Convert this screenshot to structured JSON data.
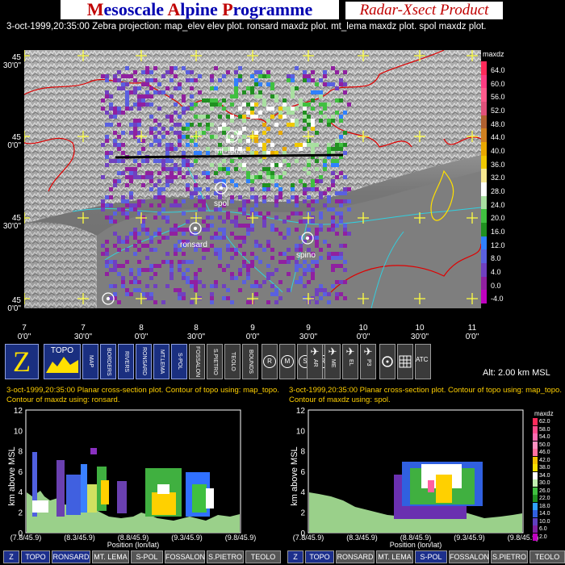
{
  "header": {
    "main_title_parts": [
      {
        "cap": "M",
        "rest": "esoscale "
      },
      {
        "cap": "A",
        "rest": "lpine "
      },
      {
        "cap": "P",
        "rest": "rogramme"
      }
    ],
    "product_title": "Radar-Xsect Product",
    "subtitle": "3-oct-1999,20:35:00  Zebra projection: map_elev elev plot. ronsard maxdz plot. mt_lema maxdz plot. spol maxdz plot."
  },
  "map": {
    "lat_labels": [
      {
        "deg": "45",
        "min": "30'0\""
      },
      {
        "deg": "45",
        "min": "0'0\""
      },
      {
        "deg": "45",
        "min": "30'0\""
      },
      {
        "deg": "45",
        "min": "0'0\""
      }
    ],
    "lon_labels": [
      {
        "deg": "7",
        "min": "0'0\""
      },
      {
        "deg": "7",
        "min": "30'0\""
      },
      {
        "deg": "8",
        "min": "0'0\""
      },
      {
        "deg": "8",
        "min": "30'0\""
      },
      {
        "deg": "9",
        "min": "0'0\""
      },
      {
        "deg": "9",
        "min": "30'0\""
      },
      {
        "deg": "10",
        "min": "0'0\""
      },
      {
        "deg": "10",
        "min": "30'0\""
      },
      {
        "deg": "11",
        "min": "0'0\""
      }
    ],
    "stations": [
      "mt_lema",
      "spol",
      "ronsard",
      "spino",
      "bric"
    ],
    "colorbar_title": "maxdz",
    "colorbar_ticks": [
      "64.0",
      "60.0",
      "56.0",
      "52.0",
      "48.0",
      "44.0",
      "40.0",
      "36.0",
      "32.0",
      "28.0",
      "24.0",
      "20.0",
      "16.0",
      "12.0",
      "8.0",
      "4.0",
      "0.0",
      "-4.0"
    ],
    "colorbar_colors": [
      "#ff2a5a",
      "#ff3c82",
      "#ff5a8c",
      "#e0507a",
      "#b06030",
      "#d08020",
      "#e8a800",
      "#f0c800",
      "#f8e890",
      "#ffffff",
      "#a8e0a0",
      "#40c040",
      "#209020",
      "#3080ff",
      "#5a60e0",
      "#7040c0",
      "#9020a0",
      "#c000c0"
    ]
  },
  "toolbar": {
    "buttons": [
      {
        "name": "zebra-button",
        "label": "Z"
      },
      {
        "name": "topo-button",
        "label": "TOPO"
      },
      {
        "name": "map-button",
        "label": "MAP"
      },
      {
        "name": "borders-button",
        "label": "BORDERS"
      },
      {
        "name": "rivers-button",
        "label": "RIVERS"
      },
      {
        "name": "ronsard-button",
        "label": "RONSARD"
      },
      {
        "name": "mt-lema-button",
        "label": "MT.LEMA"
      },
      {
        "name": "s-pol-button",
        "label": "S-POL"
      },
      {
        "name": "fossalon-button",
        "label": "FOSSALON"
      },
      {
        "name": "s-pietro-button",
        "label": "S.PIETRO"
      },
      {
        "name": "teolo-button",
        "label": "TEOLO"
      },
      {
        "name": "bounds-button",
        "label": "BOUNDS"
      }
    ],
    "circle_buttons": [
      "R",
      "M",
      "S",
      "R"
    ],
    "plane_buttons": [
      "AR",
      "ME",
      "EL",
      "P3"
    ],
    "atc_label": "ATC",
    "altitude": "Alt: 2.00 km MSL"
  },
  "xsect_left": {
    "line1": "3-oct-1999,20:35:00  Planar cross-section plot.  Contour of topo using: map_topo.",
    "line2": "Contour of maxdz using: ronsard.",
    "ylabel": "km above MSL",
    "xlabel": "Position (lon/lat)",
    "yticks": [
      "12",
      "10",
      "8",
      "6",
      "4",
      "2",
      "0"
    ],
    "xticks": [
      "(7.8/45.9)",
      "(8.3/45.9)",
      "(8.8/45.9)",
      "(9.3/45.9)",
      "(9.8/45.9)"
    ]
  },
  "xsect_right": {
    "line1": "3-oct-1999,20:35:00  Planar cross-section plot.  Contour of topo using: map_topo.",
    "line2": "Contour of maxdz using: spol.",
    "ylabel": "km above MSL",
    "xlabel": "Position (lon/lat)",
    "yticks": [
      "12",
      "10",
      "8",
      "6",
      "4",
      "2",
      "0"
    ],
    "xticks": [
      "(7.8/45.9)",
      "(8.3/45.9)",
      "(8.8/45.9)",
      "(9.3/45.9)",
      "(9.8/45.9)"
    ],
    "colorbar_title": "maxdz",
    "colorbar_ticks": [
      "62.0",
      "58.0",
      "54.0",
      "50.0",
      "46.0",
      "42.0",
      "38.0",
      "34.0",
      "30.0",
      "26.0",
      "22.0",
      "18.0",
      "14.0",
      "10.0",
      "6.0",
      "2.0"
    ]
  },
  "bottom_left": [
    "Z",
    "TOPO",
    "RONSARD",
    "MT. LEMA",
    "S-POL",
    "FOSSALON",
    "S.PIETRO",
    "TEOLO"
  ],
  "bottom_right": [
    "Z",
    "TOPO",
    "RONSARD",
    "MT. LEMA",
    "S-POL",
    "FOSSALON",
    "S.PIETRO",
    "TEOLO"
  ]
}
